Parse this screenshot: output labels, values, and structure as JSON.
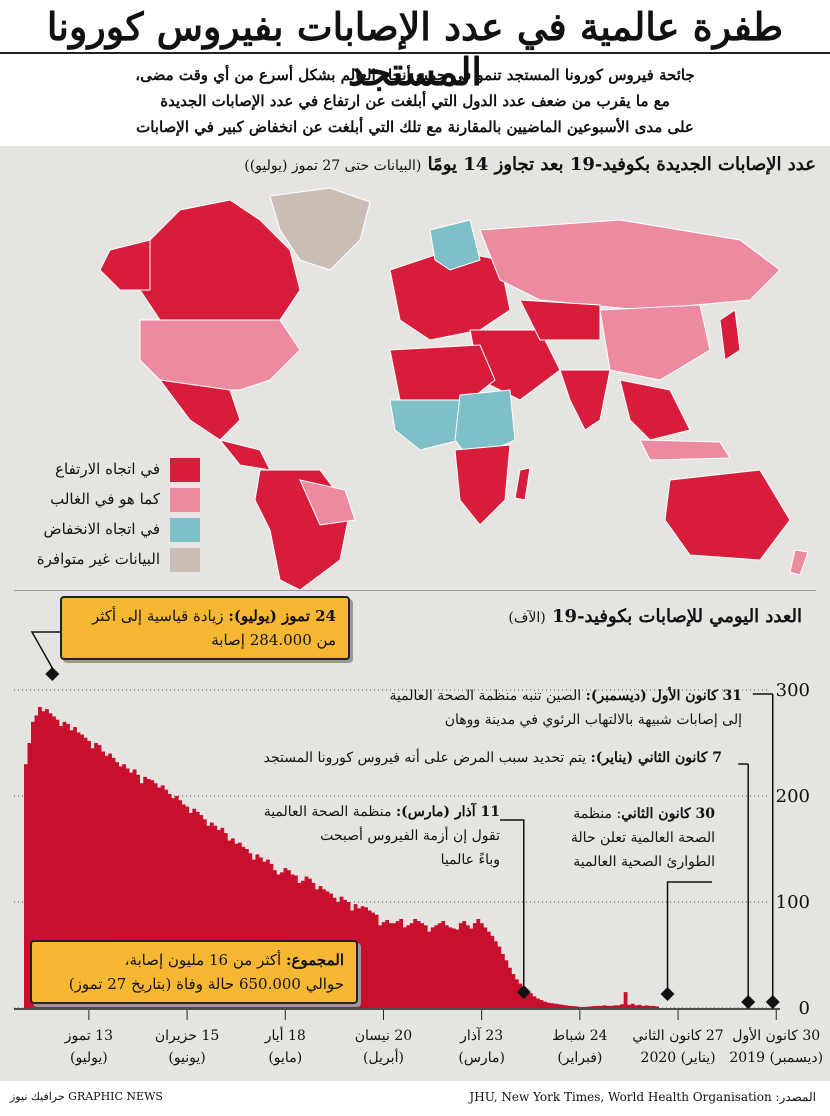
{
  "header": {
    "title": "طفرة عالمية في عدد الإصابات بفيروس كورونا المستجد",
    "subtitle_lines": [
      "جائحة فيروس كورونا المستجد تنمو في جميع أنحاء العالم بشكل أسرع من أي وقت مضى،",
      "مع ما يقرب من ضعف عدد الدول التي أبلغت عن ارتفاع في عدد الإصابات الجديدة",
      "على مدى الأسبوعين الماضيين بالمقارنة مع تلك التي أبلغت عن انخفاض كبير في الإصابات"
    ]
  },
  "map": {
    "title": "عدد الإصابات الجديدة بكوفيد-19 بعد تجاوز 14 يومًا",
    "note": "(البيانات حتى 27 تموز (يوليو))",
    "legend": [
      {
        "label": "في اتجاه الارتفاع",
        "color": "#d81d3c"
      },
      {
        "label": "كما هو في الغالب",
        "color": "#ec8aa0"
      },
      {
        "label": "في اتجاه الانخفاض",
        "color": "#7fbfc8"
      },
      {
        "label": "البيانات غير متوافرة",
        "color": "#c9bdb5"
      }
    ]
  },
  "chart_data": {
    "type": "bar",
    "title": "العدد اليومي للإصابات بكوفيد-19",
    "unit": "(الآف)",
    "ylim": [
      0,
      300
    ],
    "yticks": [
      0,
      100,
      200,
      300
    ],
    "bar_color": "#c8102e",
    "x_order": "right-to-left",
    "xticks": [
      {
        "top": "30 كانون الأول",
        "bottom": "(ديسمبر) 2019"
      },
      {
        "top": "27 كانون الثاني",
        "bottom": "(يناير) 2020"
      },
      {
        "top": "24 شباط",
        "bottom": "(فبراير)"
      },
      {
        "top": "23 آذار",
        "bottom": "(مارس)"
      },
      {
        "top": "20 نيسان",
        "bottom": "(أبريل)"
      },
      {
        "top": "18 أيار",
        "bottom": "(مايو)"
      },
      {
        "top": "15 حزيران",
        "bottom": "(يونيو)"
      },
      {
        "top": "13 تموز",
        "bottom": "(يوليو)"
      }
    ],
    "start_date": "2019-12-30",
    "values": [
      0,
      0,
      0,
      0,
      0,
      0,
      0,
      0,
      0,
      0,
      0,
      0,
      0,
      0,
      0,
      0,
      0,
      0,
      0,
      0,
      0,
      0,
      0,
      0,
      0,
      0,
      0,
      0,
      0,
      0,
      0,
      0,
      0,
      0,
      1.5,
      2,
      2,
      2.5,
      2,
      3,
      2.5,
      4,
      3,
      15,
      3.5,
      2.5,
      2.5,
      2,
      2,
      2.5,
      2,
      2,
      1.8,
      1.5,
      1.2,
      1,
      1,
      1.5,
      1.8,
      2,
      2.5,
      3,
      3.5,
      4,
      4.5,
      5,
      6,
      7.5,
      9,
      11,
      14,
      16,
      19,
      23,
      27,
      32,
      38,
      45,
      51,
      58,
      63,
      68,
      72,
      76,
      80,
      84,
      80,
      75,
      78,
      82,
      80,
      74,
      75,
      76,
      78,
      82,
      80,
      78,
      76,
      72,
      78,
      80,
      82,
      84,
      80,
      78,
      76,
      84,
      82,
      80,
      80,
      83,
      81,
      78,
      88,
      90,
      92,
      95,
      96,
      94,
      98,
      92,
      100,
      102,
      105,
      100,
      104,
      108,
      110,
      112,
      115,
      112,
      118,
      122,
      124,
      120,
      118,
      125,
      126,
      130,
      132,
      128,
      126,
      130,
      136,
      140,
      138,
      142,
      145,
      140,
      146,
      150,
      152,
      156,
      155,
      160,
      158,
      165,
      170,
      168,
      172,
      175,
      172,
      178,
      182,
      185,
      188,
      184,
      190,
      192,
      196,
      200,
      198,
      202,
      206,
      210,
      208,
      212,
      215,
      216,
      218,
      212,
      220,
      225,
      222,
      226,
      230,
      228,
      232,
      236,
      240,
      238,
      242,
      248,
      250,
      245,
      252,
      255,
      258,
      260,
      265,
      262,
      268,
      270,
      266,
      272,
      275,
      278,
      282,
      280,
      284,
      276,
      270,
      250,
      230
    ]
  },
  "annotations": {
    "a1_date": "31 كانون الأول (ديسمبر):",
    "a1_text": "الصين تنبه منظمة الصحة العالمية",
    "a1_text2": "إلى إصابات شبيهة بالالتهاب الرئوي في مدينة ووهان",
    "a2_date": "7 كانون الثاني (يناير):",
    "a2_text": "يتم تحديد سبب المرض على أنه فيروس كورونا المستجد",
    "a3_date": "11 آذار (مارس):",
    "a3_text": "منظمة الصحة العالمية",
    "a3_text2": "تقول إن أزمة الفيروس أصبحت",
    "a3_text3": "وباءً عالميا",
    "a4_date": "30 كانون الثاني",
    "a4_text": ": منظمة",
    "a4_text2": "الصحة العالمية تعلن حالة",
    "a4_text3": "الطوارئ الصحية العالمية",
    "peak_date": "24 تموز (يوليو):",
    "peak_text": "زيادة قياسية إلى أكثر",
    "peak_text2": "من 284.000 إصابة",
    "total_label": "المجموع:",
    "total_text": "أكثر من 16 مليون إصابة،",
    "total_text2": "حوالي 650.000 حالة وفاة (بتاريخ 27 تموز)"
  },
  "footer": {
    "source": "المصدر: JHU, New York Times, World Health Organisation",
    "brand": "GRAPHIC NEWS جرافيك نيوز"
  }
}
